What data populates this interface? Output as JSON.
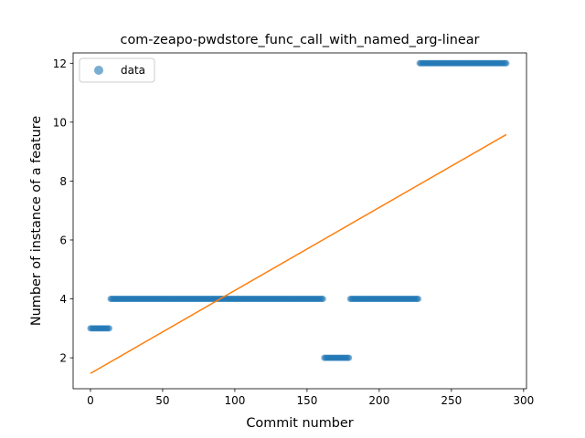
{
  "chart_data": {
    "type": "scatter",
    "title": "com-zeapo-pwdstore_func_call_with_named_arg-linear",
    "xlabel": "Commit number",
    "ylabel": "Number of instance of a feature",
    "xlim": [
      -12,
      302
    ],
    "ylim": [
      0.95,
      12.35
    ],
    "x_ticks": [
      0,
      50,
      100,
      150,
      200,
      250,
      300
    ],
    "y_ticks": [
      2,
      4,
      6,
      8,
      10,
      12
    ],
    "legend": {
      "position": "top-left",
      "entries": [
        "data"
      ]
    },
    "colors": {
      "data": "#1f77b4",
      "fit": "#ff7f0e"
    },
    "grid": false,
    "scatter_segments": [
      {
        "x_start": 0,
        "x_end": 13,
        "y": 3
      },
      {
        "x_start": 14,
        "x_end": 161,
        "y": 4
      },
      {
        "x_start": 162,
        "x_end": 179,
        "y": 2
      },
      {
        "x_start": 180,
        "x_end": 227,
        "y": 4
      },
      {
        "x_start": 228,
        "x_end": 288,
        "y": 12
      }
    ],
    "fit_line": {
      "x": [
        0,
        288
      ],
      "y": [
        1.47,
        9.58
      ]
    }
  }
}
